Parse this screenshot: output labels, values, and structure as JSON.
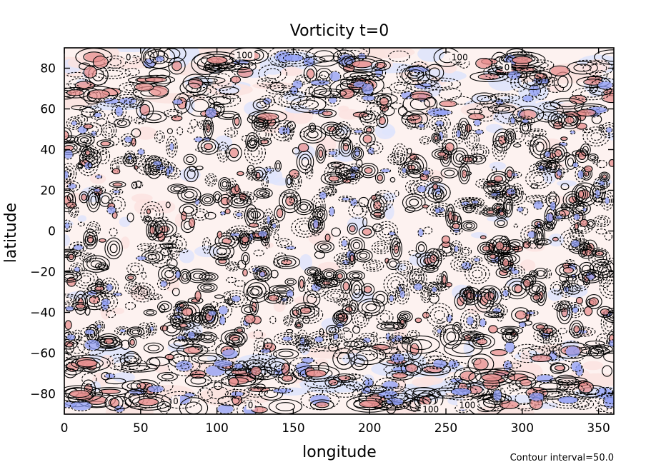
{
  "chart_data": {
    "type": "heatmap",
    "subtype": "filled contour map",
    "title": "Vorticity t=0",
    "xlabel": "longitude",
    "ylabel": "latitude",
    "xlim": [
      0,
      360
    ],
    "ylim": [
      -90,
      90
    ],
    "x_ticks": [
      0,
      50,
      100,
      150,
      200,
      250,
      300,
      350
    ],
    "y_ticks": [
      -80,
      -60,
      -40,
      -20,
      0,
      20,
      40,
      60,
      80
    ],
    "x_tick_labels": [
      "0",
      "50",
      "100",
      "150",
      "200",
      "250",
      "300",
      "350"
    ],
    "y_tick_labels": [
      "−80",
      "−60",
      "−40",
      "−20",
      "0",
      "20",
      "40",
      "60",
      "80"
    ],
    "contour_interval": 50.0,
    "contour_interval_text": "Contour interval=50.0",
    "contour_labels": [
      {
        "text": "0",
        "lon": 42,
        "lat": 85
      },
      {
        "text": "100",
        "lon": 118,
        "lat": 86
      },
      {
        "text": "100",
        "lon": 259,
        "lat": 85
      },
      {
        "text": "0",
        "lon": 290,
        "lat": 80
      },
      {
        "text": "0",
        "lon": 73,
        "lat": -84
      },
      {
        "text": "0",
        "lon": 122,
        "lat": -86
      },
      {
        "text": "100",
        "lon": 240,
        "lat": -88
      },
      {
        "text": "100",
        "lon": 264,
        "lat": -86
      }
    ],
    "grid": false,
    "colors": {
      "positive": "#e88f8f",
      "positive_light": "#fbe3e0",
      "negative": "#8f9ef5",
      "negative_light": "#dfe4fb",
      "contour_line": "#000000"
    }
  }
}
